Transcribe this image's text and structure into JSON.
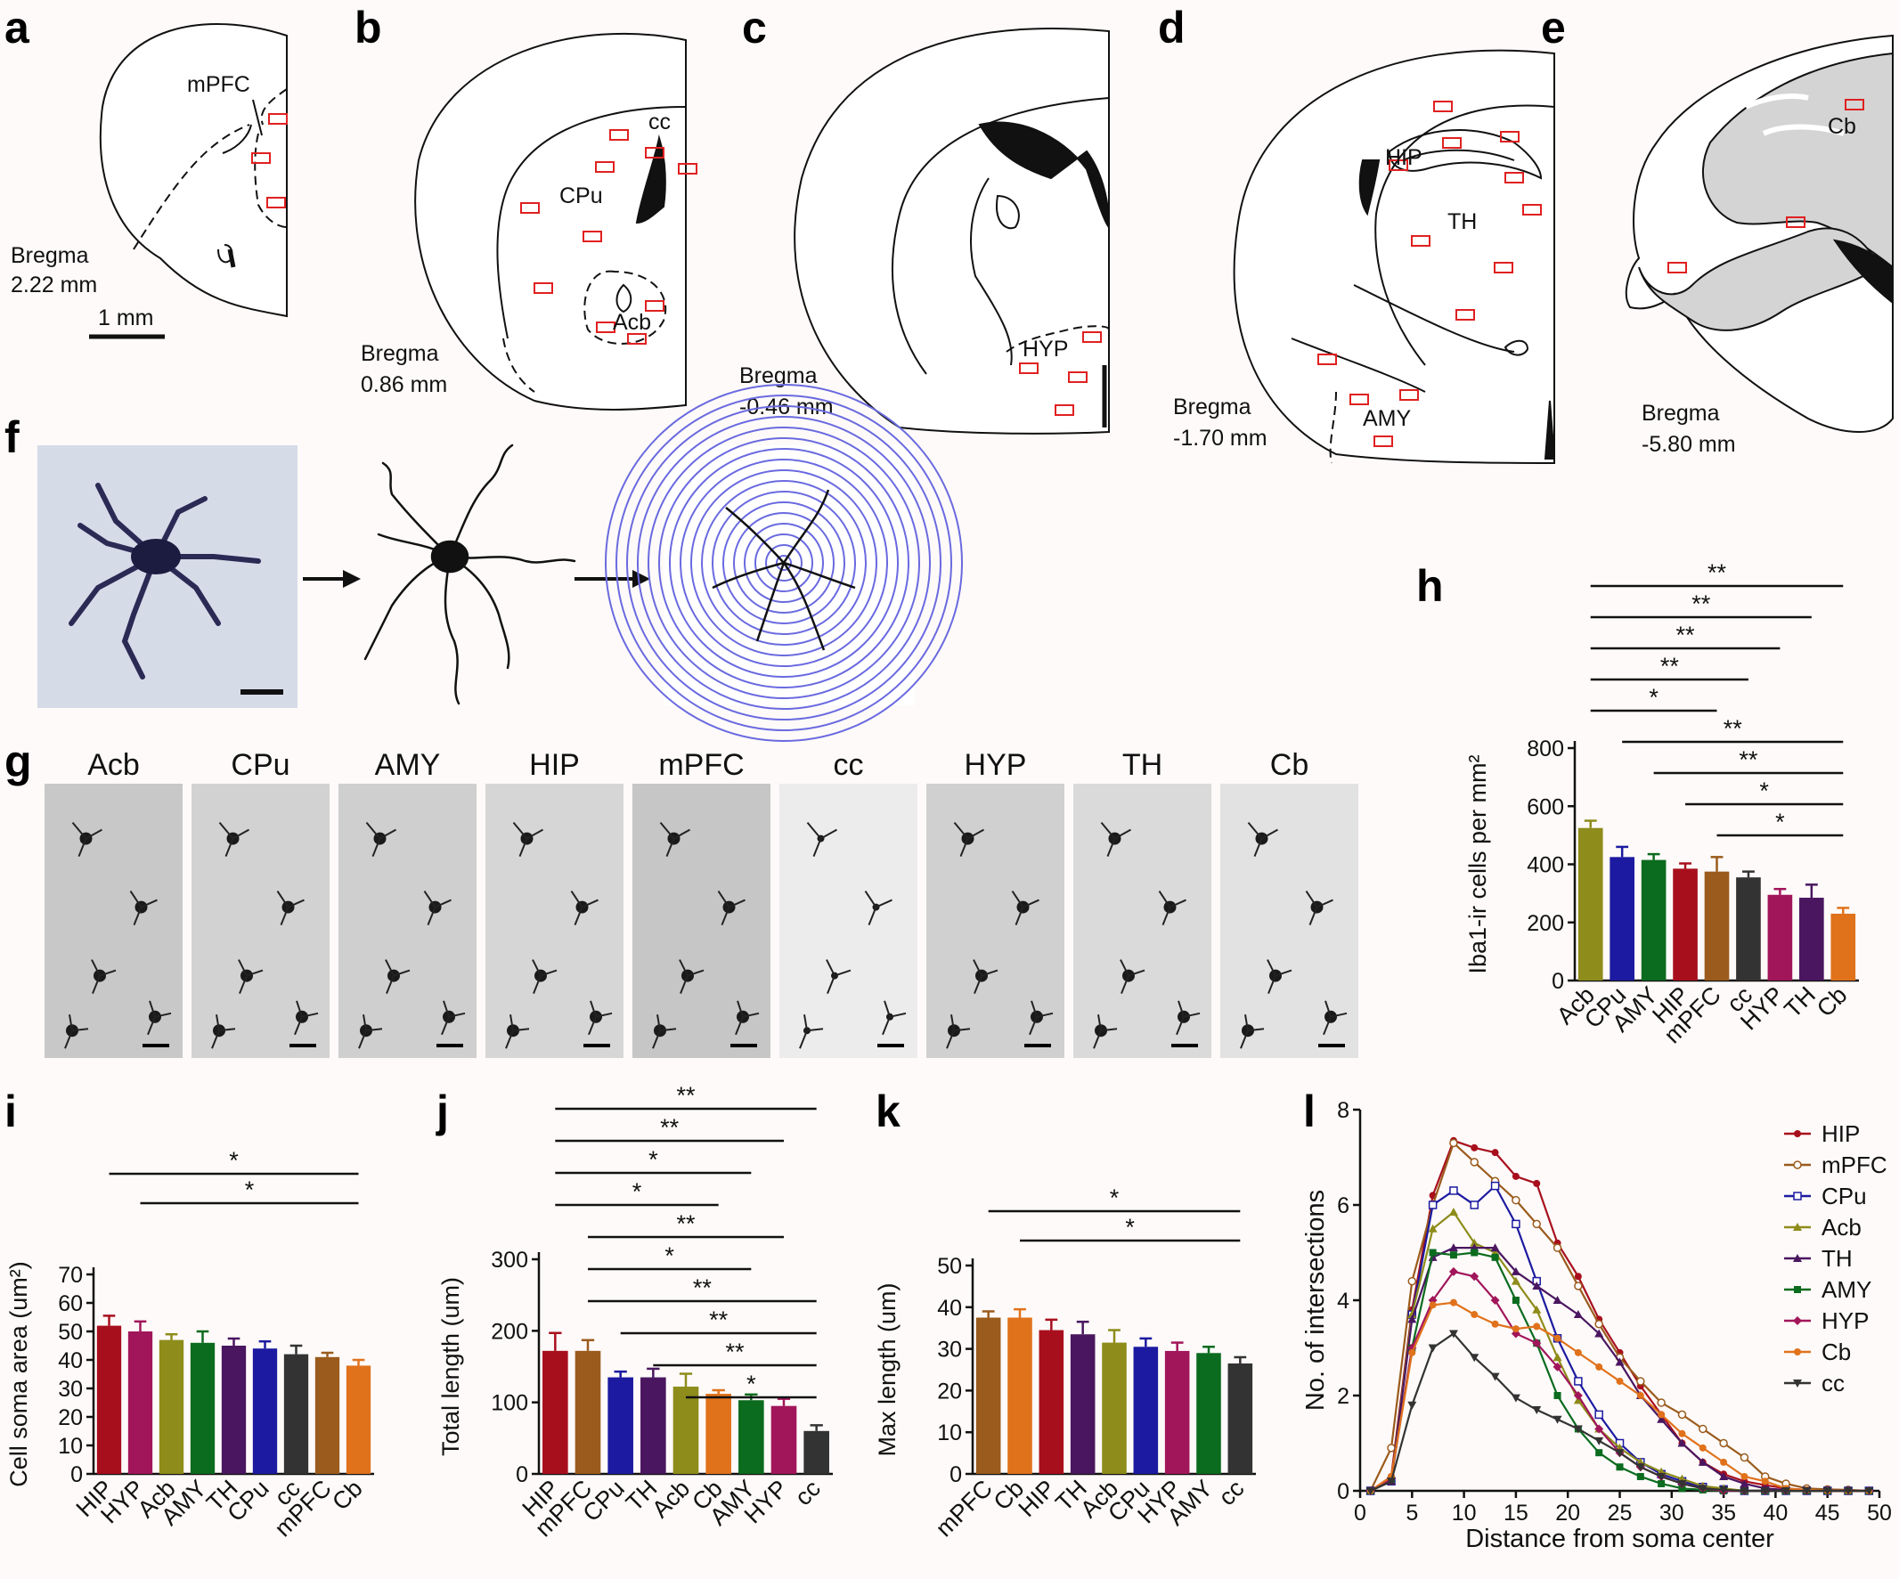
{
  "panel_letters": [
    "a",
    "b",
    "c",
    "d",
    "e",
    "f",
    "g",
    "h",
    "i",
    "j",
    "k",
    "l"
  ],
  "atlas": {
    "a": {
      "bregma_label": "Bregma",
      "bregma_value": "2.22 mm",
      "regions": [
        "mPFC"
      ],
      "scale_bar": "1 mm"
    },
    "b": {
      "bregma_label": "Bregma",
      "bregma_value": "0.86 mm",
      "regions": [
        "CPu",
        "cc",
        "Acb"
      ]
    },
    "c": {
      "bregma_label": "Bregma",
      "bregma_value": "-0.46 mm",
      "regions": [
        "HYP"
      ]
    },
    "d": {
      "bregma_label": "Bregma",
      "bregma_value": "-1.70 mm",
      "regions": [
        "HIP",
        "TH",
        "AMY"
      ]
    },
    "e": {
      "bregma_label": "Bregma",
      "bregma_value": "-5.80 mm",
      "regions": [
        "Cb"
      ]
    }
  },
  "micrographs": {
    "labels": [
      "Acb",
      "CPu",
      "AMY",
      "HIP",
      "mPFC",
      "cc",
      "HYP",
      "TH",
      "Cb"
    ]
  },
  "colors": {
    "HIP": "#a80f1d",
    "HYP": "#a1165a",
    "Acb": "#8e8c1a",
    "AMY": "#0b6b1e",
    "TH": "#4a1660",
    "CPu": "#1c1aa0",
    "cc": "#333333",
    "mPFC": "#9a5b1c",
    "Cb": "#e0721c"
  },
  "chart_data": [
    {
      "panel": "h",
      "type": "bar",
      "categories": [
        "Acb",
        "CPu",
        "AMY",
        "HIP",
        "mPFC",
        "cc",
        "HYP",
        "TH",
        "Cb"
      ],
      "values": [
        525,
        425,
        415,
        385,
        375,
        355,
        295,
        285,
        230
      ],
      "errors": [
        25,
        35,
        20,
        18,
        50,
        20,
        20,
        45,
        20
      ],
      "ylabel": "Iba1-ir cells per mm²",
      "ylim": [
        0,
        800
      ],
      "yticks": [
        0,
        200,
        400,
        600,
        800
      ],
      "significance": [
        {
          "from": "Acb",
          "to": "Cb",
          "label": "**"
        },
        {
          "from": "Acb",
          "to": "TH",
          "label": "**"
        },
        {
          "from": "Acb",
          "to": "HYP",
          "label": "**"
        },
        {
          "from": "Acb",
          "to": "cc",
          "label": "**"
        },
        {
          "from": "Acb",
          "to": "mPFC",
          "label": "*"
        },
        {
          "from": "CPu",
          "to": "Cb",
          "label": "**"
        },
        {
          "from": "AMY",
          "to": "Cb",
          "label": "**"
        },
        {
          "from": "HIP",
          "to": "Cb",
          "label": "*"
        },
        {
          "from": "mPFC",
          "to": "Cb",
          "label": "*"
        }
      ]
    },
    {
      "panel": "i",
      "type": "bar",
      "categories": [
        "HIP",
        "HYP",
        "Acb",
        "AMY",
        "TH",
        "CPu",
        "cc",
        "mPFC",
        "Cb"
      ],
      "values": [
        52,
        50,
        47,
        46,
        45,
        44,
        42,
        41,
        38
      ],
      "errors": [
        3.5,
        3.5,
        2,
        4,
        2.5,
        2.5,
        3,
        1.5,
        2
      ],
      "ylabel": "Cell soma area (um²)",
      "ylim": [
        0,
        70
      ],
      "yticks": [
        0,
        10,
        20,
        30,
        40,
        50,
        60,
        70
      ],
      "significance": [
        {
          "from": "HIP",
          "to": "Cb",
          "label": "*"
        },
        {
          "from": "HYP",
          "to": "Cb",
          "label": "*"
        }
      ]
    },
    {
      "panel": "j",
      "type": "bar",
      "categories": [
        "HIP",
        "mPFC",
        "CPu",
        "TH",
        "Acb",
        "Cb",
        "AMY",
        "HYP",
        "cc"
      ],
      "values": [
        172,
        172,
        135,
        135,
        122,
        112,
        103,
        95,
        60
      ],
      "errors": [
        25,
        15,
        8,
        12,
        18,
        5,
        8,
        10,
        8
      ],
      "ylabel": "Total length (um)",
      "ylim": [
        0,
        300
      ],
      "yticks": [
        0,
        100,
        200,
        300
      ],
      "significance": [
        {
          "from": "HIP",
          "to": "cc",
          "label": "**"
        },
        {
          "from": "HIP",
          "to": "HYP",
          "label": "**"
        },
        {
          "from": "HIP",
          "to": "AMY",
          "label": "*"
        },
        {
          "from": "HIP",
          "to": "Cb",
          "label": "*"
        },
        {
          "from": "mPFC",
          "to": "HYP",
          "label": "**"
        },
        {
          "from": "mPFC",
          "to": "AMY",
          "label": "*"
        },
        {
          "from": "mPFC",
          "to": "cc",
          "label": "**"
        },
        {
          "from": "CPu",
          "to": "cc",
          "label": "**"
        },
        {
          "from": "TH",
          "to": "cc",
          "label": "**"
        },
        {
          "from": "Acb",
          "to": "cc",
          "label": "*"
        }
      ]
    },
    {
      "panel": "k",
      "type": "bar",
      "categories": [
        "mPFC",
        "Cb",
        "HIP",
        "TH",
        "Acb",
        "CPu",
        "HYP",
        "AMY",
        "cc"
      ],
      "values": [
        37.5,
        37.5,
        34.5,
        33.5,
        31.5,
        30.5,
        29.5,
        29,
        26.5
      ],
      "errors": [
        1.5,
        2,
        2.5,
        3,
        3,
        2,
        2,
        1.5,
        1.5
      ],
      "ylabel": "Max length (um)",
      "ylim": [
        0,
        50
      ],
      "yticks": [
        0,
        10,
        20,
        30,
        40,
        50
      ],
      "significance": [
        {
          "from": "mPFC",
          "to": "cc",
          "label": "*"
        },
        {
          "from": "Cb",
          "to": "cc",
          "label": "*"
        }
      ]
    },
    {
      "panel": "l",
      "type": "line",
      "xlabel": "Distance from soma center",
      "ylabel": "No. of intersections",
      "xlim": [
        0,
        50
      ],
      "ylim": [
        0,
        8
      ],
      "xticks": [
        0,
        5,
        10,
        15,
        20,
        25,
        30,
        35,
        40,
        45,
        50
      ],
      "yticks": [
        0,
        2,
        4,
        6,
        8
      ],
      "x": [
        1,
        3,
        5,
        7,
        9,
        11,
        13,
        15,
        17,
        19,
        21,
        23,
        25,
        27,
        29,
        31,
        33,
        35,
        37,
        39,
        41,
        43,
        45,
        47,
        49
      ],
      "series": [
        {
          "name": "HIP",
          "marker": "filled-circle",
          "values": [
            0,
            0.3,
            3.8,
            6.2,
            7.35,
            7.2,
            7.1,
            6.6,
            6.45,
            5.2,
            4.5,
            3.6,
            2.9,
            2.2,
            1.6,
            1.0,
            0.6,
            0.35,
            0.2,
            0.12,
            0.05,
            0.02,
            0,
            0,
            0
          ]
        },
        {
          "name": "mPFC",
          "marker": "open-circle",
          "values": [
            0,
            0.9,
            4.4,
            6.0,
            7.3,
            6.9,
            6.5,
            6.1,
            5.6,
            5.1,
            4.3,
            3.5,
            2.8,
            2.3,
            1.85,
            1.6,
            1.3,
            1.0,
            0.7,
            0.3,
            0.15,
            0.05,
            0.03,
            0.02,
            0
          ]
        },
        {
          "name": "CPu",
          "marker": "open-square",
          "values": [
            0,
            0.2,
            3.7,
            6.0,
            6.3,
            6.0,
            6.4,
            5.6,
            4.4,
            3.2,
            2.3,
            1.6,
            1.0,
            0.6,
            0.35,
            0.2,
            0.08,
            0.03,
            0,
            0,
            0,
            0,
            0,
            0,
            0
          ]
        },
        {
          "name": "Acb",
          "marker": "filled-triangle",
          "values": [
            0,
            0.2,
            3.7,
            5.5,
            5.85,
            5.2,
            5.0,
            4.4,
            3.8,
            2.8,
            1.9,
            1.3,
            0.9,
            0.6,
            0.4,
            0.25,
            0.1,
            0.05,
            0,
            0,
            0,
            0,
            0,
            0,
            0
          ]
        },
        {
          "name": "TH",
          "marker": "filled-triangle",
          "values": [
            0,
            0.2,
            3.6,
            4.9,
            5.1,
            5.1,
            5.1,
            4.6,
            4.3,
            4.0,
            3.7,
            3.3,
            2.7,
            2.0,
            1.5,
            1.0,
            0.6,
            0.3,
            0.15,
            0.05,
            0.02,
            0,
            0,
            0,
            0
          ]
        },
        {
          "name": "AMY",
          "marker": "filled-square",
          "values": [
            0,
            0.25,
            3.0,
            5.0,
            4.95,
            5.0,
            4.9,
            4.0,
            3.1,
            2.0,
            1.3,
            0.8,
            0.5,
            0.3,
            0.15,
            0.05,
            0.02,
            0,
            0,
            0,
            0,
            0,
            0,
            0,
            0
          ]
        },
        {
          "name": "HYP",
          "marker": "filled-diamond",
          "values": [
            0,
            0.25,
            3.0,
            4.0,
            4.6,
            4.5,
            4.0,
            3.3,
            3.1,
            2.6,
            2.0,
            1.3,
            0.8,
            0.5,
            0.3,
            0.15,
            0.05,
            0,
            0,
            0,
            0,
            0,
            0,
            0,
            0
          ]
        },
        {
          "name": "Cb",
          "marker": "filled-circle",
          "values": [
            0,
            0.3,
            2.9,
            3.9,
            3.95,
            3.7,
            3.5,
            3.4,
            3.45,
            3.2,
            2.9,
            2.6,
            2.3,
            2.0,
            1.6,
            1.2,
            0.9,
            0.6,
            0.3,
            0.2,
            0.05,
            0.02,
            0,
            0,
            0
          ]
        },
        {
          "name": "cc",
          "marker": "filled-triangle-down",
          "values": [
            0,
            0.2,
            1.8,
            3.0,
            3.3,
            2.8,
            2.4,
            1.95,
            1.7,
            1.5,
            1.3,
            1.05,
            0.8,
            0.5,
            0.3,
            0.15,
            0.05,
            0.02,
            0,
            0,
            0,
            0,
            0,
            0,
            0
          ]
        }
      ]
    }
  ]
}
